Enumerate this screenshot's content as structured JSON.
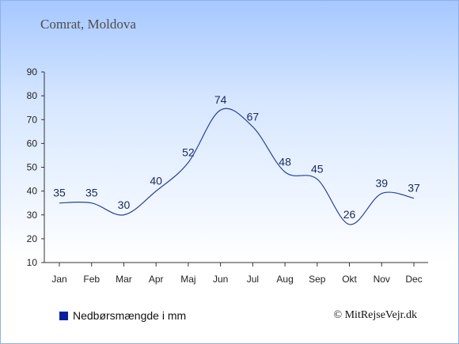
{
  "header": {
    "location": "Comrat, Moldova"
  },
  "legend": {
    "label": "Nedbørsmængde i mm",
    "color": "#0a1fa0"
  },
  "footer": {
    "copyright": "© MitRejseVejr.dk"
  },
  "chart_data": {
    "type": "line",
    "title": "",
    "xlabel": "",
    "ylabel": "",
    "categories": [
      "Jan",
      "Feb",
      "Mar",
      "Apr",
      "Maj",
      "Jun",
      "Jul",
      "Aug",
      "Sep",
      "Okt",
      "Nov",
      "Dec"
    ],
    "series": [
      {
        "name": "Nedbørsmængde i mm",
        "values": [
          35,
          35,
          30,
          40,
          52,
          74,
          67,
          48,
          45,
          26,
          39,
          37
        ],
        "color": "#2a3fa0"
      }
    ],
    "ylim": [
      10,
      90
    ],
    "yticks": [
      10,
      20,
      30,
      40,
      50,
      60,
      70,
      80,
      90
    ],
    "grid": false,
    "legend_position": "bottom-left"
  }
}
